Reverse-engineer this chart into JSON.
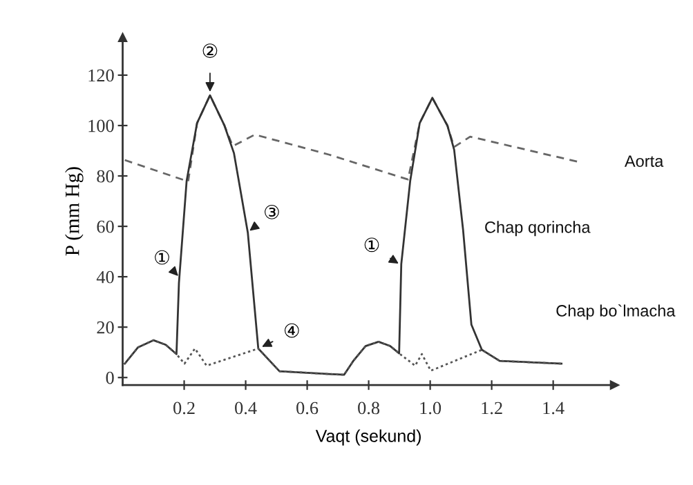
{
  "chart_data": {
    "type": "line",
    "xlabel": "Vaqt (sekund)",
    "ylabel": "P (mm Hg)",
    "xlim": [
      0,
      1.6
    ],
    "ylim": [
      -3,
      135
    ],
    "xticks": [
      0.2,
      0.4,
      0.6,
      0.8,
      {
        "value": 1.0,
        "label": "1.0"
      },
      1.2,
      1.4
    ],
    "yticks": [
      0,
      20,
      40,
      60,
      80,
      100,
      120
    ],
    "grid": false,
    "legend": false,
    "marker": "none",
    "series": [
      {
        "name": "Aorta",
        "color": "#666666",
        "line_style": "dashed",
        "x": [
          0.007,
          0.213,
          0.242,
          0.284,
          0.331,
          0.358,
          0.43,
          0.67,
          0.928,
          0.966,
          1.007,
          1.056,
          1.078,
          1.13,
          1.485
        ],
        "values": [
          86.3,
          77.8,
          101,
          112,
          100,
          91.8,
          96.4,
          88.5,
          78.6,
          101,
          111,
          100,
          91.5,
          95.6,
          85.5
        ]
      },
      {
        "name": "Chap qorincha",
        "color": "#333333",
        "line_style": "solid",
        "x": [
          0.007,
          0.05,
          0.1,
          0.14,
          0.175,
          0.183,
          0.208,
          0.242,
          0.284,
          0.331,
          0.362,
          0.407,
          0.441,
          0.51,
          0.67,
          0.72,
          0.75,
          0.79,
          0.832,
          0.87,
          0.899,
          0.906,
          0.935,
          0.966,
          1.007,
          1.056,
          1.078,
          1.107,
          1.134,
          1.168,
          1.226,
          1.427
        ],
        "values": [
          5.5,
          12,
          14.8,
          13,
          9.3,
          37.5,
          78,
          101,
          112,
          100,
          89,
          57.5,
          11.5,
          2.5,
          1.4,
          1.1,
          6.6,
          12.5,
          14.2,
          12.5,
          9.6,
          45,
          78,
          101,
          111,
          100,
          90.4,
          58.6,
          21,
          11,
          6.6,
          5.5
        ]
      },
      {
        "name": "Chap bo`lmacha",
        "color": "#555555",
        "line_style": "dotted",
        "x": [
          0.007,
          0.05,
          0.1,
          0.14,
          0.175,
          0.201,
          0.235,
          0.273,
          0.441,
          0.51,
          0.67,
          0.72,
          0.75,
          0.79,
          0.832,
          0.87,
          0.899,
          0.951,
          0.973,
          1.002,
          1.168,
          1.226,
          1.427
        ],
        "values": [
          5.5,
          12,
          14.8,
          13,
          9.3,
          5.5,
          11.5,
          4.7,
          11.5,
          2.5,
          1.4,
          1.1,
          6.6,
          12.5,
          14.2,
          12.5,
          9.6,
          4.7,
          9.3,
          2.7,
          11,
          6.6,
          5.5
        ]
      }
    ],
    "annotations": [
      {
        "text": "①",
        "x": 0.183,
        "y": 40
      },
      {
        "text": "②",
        "x": 0.284,
        "y": 113
      },
      {
        "text": "③",
        "x": 0.41,
        "y": 58
      },
      {
        "text": "④",
        "x": 0.45,
        "y": 12
      },
      {
        "text": "①",
        "x": 0.9,
        "y": 45
      }
    ]
  }
}
